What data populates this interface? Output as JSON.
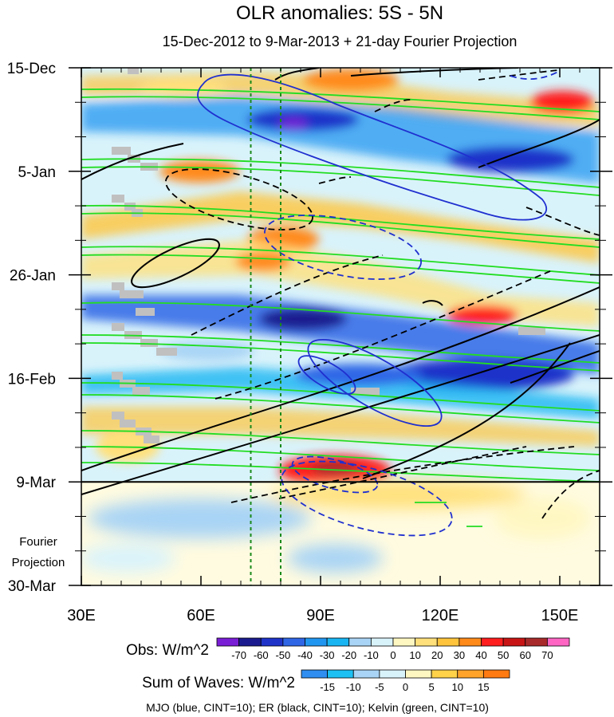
{
  "chart_data": {
    "type": "heatmap",
    "title": "OLR anomalies: 5S - 5N",
    "subtitle": "15-Dec-2012 to 9-Mar-2013 + 21-day Fourier Projection",
    "xlabel": "",
    "ylabel": "",
    "x_ticks": [
      {
        "value": 30,
        "label": "30E"
      },
      {
        "value": 60,
        "label": "60E"
      },
      {
        "value": 90,
        "label": "90E"
      },
      {
        "value": 120,
        "label": "120E"
      },
      {
        "value": 150,
        "label": "150E"
      }
    ],
    "xlim": [
      30,
      160
    ],
    "y_ticks": [
      {
        "value": 0,
        "label": "15-Dec"
      },
      {
        "value": 21,
        "label": "5-Jan"
      },
      {
        "value": 42,
        "label": "26-Jan"
      },
      {
        "value": 63,
        "label": "16-Feb"
      },
      {
        "value": 84,
        "label": "9-Mar"
      },
      {
        "value": 105,
        "label": "30-Mar"
      }
    ],
    "ylim_days": [
      0,
      105
    ],
    "forecast_start_day": 84,
    "forecast_label_lines": [
      "Fourier",
      "Projection"
    ],
    "reference_longitudes": [
      72.5,
      80
    ],
    "obs_colorbar": {
      "title": "Obs: W/m^2",
      "levels": [
        -70,
        -60,
        -50,
        -40,
        -30,
        -20,
        -10,
        0,
        10,
        20,
        30,
        40,
        50,
        60,
        70
      ],
      "colors": [
        "#7a1ed6",
        "#1b1b8f",
        "#1f33c9",
        "#2f66e6",
        "#2196f0",
        "#19b5f2",
        "#a9d4f5",
        "#d9f3fb",
        "#fff7c2",
        "#ffe07a",
        "#ffc43c",
        "#ff8a1a",
        "#ff1e1e",
        "#c81414",
        "#a82a2a",
        "#ff66c4"
      ]
    },
    "waves_colorbar": {
      "title": "Sum of Waves: W/m^2",
      "levels": [
        -15,
        -10,
        -5,
        0,
        5,
        10,
        15
      ],
      "colors": [
        "#2f8ef0",
        "#1cc0f2",
        "#a9d4f5",
        "#d9f3fb",
        "#fff7c2",
        "#ffd24a",
        "#ffa32a",
        "#ff7a10"
      ]
    },
    "contour_legend": "MJO (blue, CINT=10); ER (black, CINT=10); Kelvin (green, CINT=10)",
    "series": [
      {
        "name": "MJO",
        "color": "#1f2fcf",
        "cint": 10
      },
      {
        "name": "ER",
        "color": "#000000",
        "cint": 10
      },
      {
        "name": "Kelvin",
        "color": "#22dd22",
        "cint": 10
      }
    ]
  }
}
